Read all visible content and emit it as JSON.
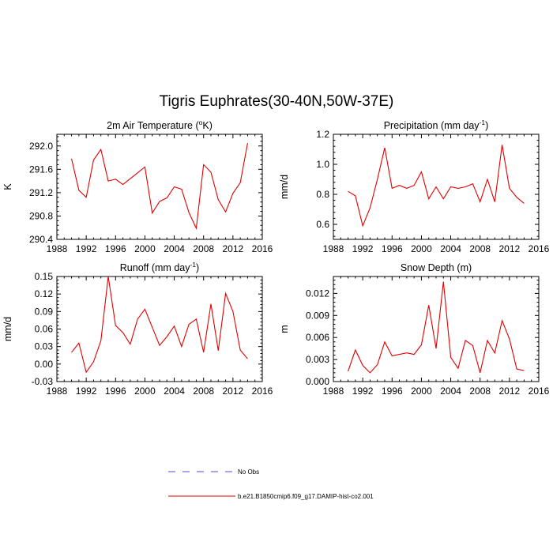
{
  "title": "Tigris Euphrates(30-40N,50W-37E)",
  "legend": {
    "entries": [
      {
        "label": "No Obs",
        "color": "#4a4ae6",
        "style": "dashed"
      },
      {
        "label": "b.e21.B1850cmip6.f09_g17.DAMIP-hist-co2.001",
        "color": "#e00000",
        "style": "solid"
      }
    ]
  },
  "chart_data": [
    {
      "type": "line",
      "title": "2m Air Temperature (",
      "title_sup": "o",
      "title_tail": "K)",
      "ylabel": "K",
      "xlim": [
        1988,
        2016
      ],
      "ylim": [
        290.4,
        292.2
      ],
      "xticks": [
        1988,
        1992,
        1996,
        2000,
        2004,
        2008,
        2012,
        2016
      ],
      "yticks": [
        290.4,
        290.8,
        291.2,
        291.6,
        292.0
      ],
      "ytick_labels": [
        "290.4",
        "290.8",
        "291.2",
        "291.6",
        "292.0"
      ],
      "series": [
        {
          "color": "#e00000",
          "x": [
            1990,
            1991,
            1992,
            1993,
            1994,
            1995,
            1996,
            1997,
            1998,
            1999,
            2000,
            2001,
            2002,
            2003,
            2004,
            2005,
            2006,
            2007,
            2008,
            2009,
            2010,
            2011,
            2012,
            2013,
            2014
          ],
          "y": [
            291.78,
            291.24,
            291.12,
            291.76,
            291.94,
            291.4,
            291.43,
            291.34,
            291.44,
            291.54,
            291.64,
            290.85,
            291.05,
            291.11,
            291.3,
            291.26,
            290.86,
            290.59,
            291.68,
            291.55,
            291.08,
            290.87,
            291.19,
            291.37,
            292.05
          ]
        }
      ]
    },
    {
      "type": "line",
      "title": "Precipitation (mm day",
      "title_sup": "-1",
      "title_tail": ")",
      "ylabel": "mm/d",
      "xlim": [
        1988,
        2016
      ],
      "ylim": [
        0.5,
        1.2
      ],
      "xticks": [
        1988,
        1992,
        1996,
        2000,
        2004,
        2008,
        2012,
        2016
      ],
      "yticks": [
        0.6,
        0.8,
        1.0,
        1.2
      ],
      "ytick_labels": [
        "0.6",
        "0.8",
        "1.0",
        "1.2"
      ],
      "series": [
        {
          "color": "#e00000",
          "x": [
            1990,
            1991,
            1992,
            1993,
            1994,
            1995,
            1996,
            1997,
            1998,
            1999,
            2000,
            2001,
            2002,
            2003,
            2004,
            2005,
            2006,
            2007,
            2008,
            2009,
            2010,
            2011,
            2012,
            2013,
            2014
          ],
          "y": [
            0.82,
            0.79,
            0.59,
            0.71,
            0.9,
            1.11,
            0.84,
            0.86,
            0.84,
            0.86,
            0.95,
            0.77,
            0.85,
            0.77,
            0.85,
            0.84,
            0.85,
            0.87,
            0.75,
            0.9,
            0.75,
            1.13,
            0.84,
            0.78,
            0.74
          ]
        }
      ]
    },
    {
      "type": "line",
      "title": "Runoff (mm day",
      "title_sup": "-1",
      "title_tail": ")",
      "ylabel": "mm/d",
      "xlim": [
        1988,
        2016
      ],
      "ylim": [
        -0.03,
        0.15
      ],
      "xticks": [
        1988,
        1992,
        1996,
        2000,
        2004,
        2008,
        2012,
        2016
      ],
      "yticks": [
        -0.03,
        0.0,
        0.03,
        0.06,
        0.09,
        0.12,
        0.15
      ],
      "ytick_labels": [
        "-0.03",
        "0.00",
        "0.03",
        "0.06",
        "0.09",
        "0.12",
        "0.15"
      ],
      "series": [
        {
          "color": "#e00000",
          "x": [
            1990,
            1991,
            1992,
            1993,
            1994,
            1995,
            1996,
            1997,
            1998,
            1999,
            2000,
            2001,
            2002,
            2003,
            2004,
            2005,
            2006,
            2007,
            2008,
            2009,
            2010,
            2011,
            2012,
            2013,
            2014
          ],
          "y": [
            0.02,
            0.036,
            -0.014,
            0.004,
            0.04,
            0.15,
            0.066,
            0.054,
            0.034,
            0.077,
            0.094,
            0.063,
            0.032,
            0.047,
            0.065,
            0.03,
            0.068,
            0.077,
            0.02,
            0.103,
            0.023,
            0.121,
            0.09,
            0.024,
            0.009
          ]
        }
      ]
    },
    {
      "type": "line",
      "title": "Snow Depth (m)",
      "title_sup": "",
      "title_tail": "",
      "ylabel": "m",
      "xlim": [
        1988,
        2016
      ],
      "ylim": [
        0.0,
        0.0143
      ],
      "xticks": [
        1988,
        1992,
        1996,
        2000,
        2004,
        2008,
        2012,
        2016
      ],
      "yticks": [
        0.0,
        0.003,
        0.006,
        0.009,
        0.012
      ],
      "ytick_labels": [
        "0.000",
        "0.003",
        "0.006",
        "0.009",
        "0.012"
      ],
      "series": [
        {
          "color": "#e00000",
          "x": [
            1990,
            1991,
            1992,
            1993,
            1994,
            1995,
            1996,
            1997,
            1998,
            1999,
            2000,
            2001,
            2002,
            2003,
            2004,
            2005,
            2006,
            2007,
            2008,
            2009,
            2010,
            2011,
            2012,
            2013,
            2014
          ],
          "y": [
            0.0014,
            0.0043,
            0.0022,
            0.0012,
            0.0023,
            0.0054,
            0.0035,
            0.0037,
            0.0039,
            0.0037,
            0.005,
            0.0104,
            0.0045,
            0.0136,
            0.0033,
            0.0018,
            0.0056,
            0.0049,
            0.0012,
            0.0056,
            0.0039,
            0.0083,
            0.0058,
            0.0017,
            0.0015
          ]
        }
      ]
    }
  ]
}
